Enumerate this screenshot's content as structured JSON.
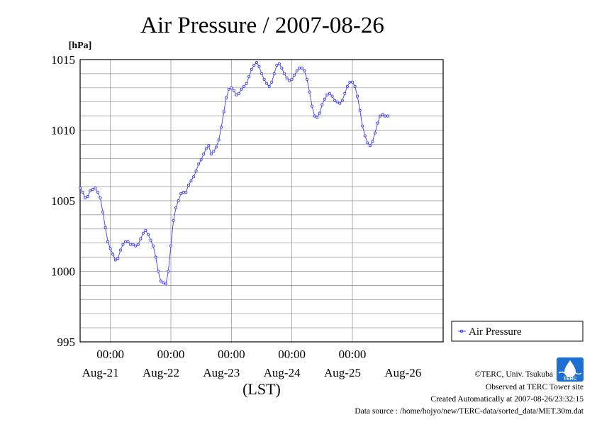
{
  "chart_data": {
    "type": "line",
    "title": "Air Pressure / 2007-08-26",
    "ylabel": "[hPa]",
    "xlabel": "(LST)",
    "ylim": [
      995,
      1015
    ],
    "yticks": [
      995,
      1000,
      1005,
      1010,
      1015
    ],
    "xlim": [
      0,
      144
    ],
    "x_unit": "hours since 2007-08-20 12:00 LST",
    "x_time_ticks": [
      {
        "x": 12,
        "label": "00:00"
      },
      {
        "x": 36,
        "label": "00:00"
      },
      {
        "x": 60,
        "label": "00:00"
      },
      {
        "x": 84,
        "label": "00:00"
      },
      {
        "x": 108,
        "label": "00:00"
      }
    ],
    "x_date_labels": [
      {
        "x": 12,
        "label": "Aug-21"
      },
      {
        "x": 36,
        "label": "Aug-22"
      },
      {
        "x": 60,
        "label": "Aug-23"
      },
      {
        "x": 84,
        "label": "Aug-24"
      },
      {
        "x": 108,
        "label": "Aug-25"
      },
      {
        "x": 132,
        "label": "Aug-26"
      }
    ],
    "grid": true,
    "legend_position": "right",
    "series": [
      {
        "name": "Air Pressure",
        "color": "#3b3bff",
        "points": [
          [
            0,
            1005.9
          ],
          [
            1,
            1005.6
          ],
          [
            2,
            1005.2
          ],
          [
            3,
            1005.3
          ],
          [
            4,
            1005.7
          ],
          [
            5,
            1005.8
          ],
          [
            6,
            1005.9
          ],
          [
            7,
            1005.6
          ],
          [
            8,
            1005.2
          ],
          [
            9,
            1004.2
          ],
          [
            10,
            1003.1
          ],
          [
            11,
            1002.1
          ],
          [
            12,
            1001.6
          ],
          [
            13,
            1001.2
          ],
          [
            14,
            1000.8
          ],
          [
            15,
            1000.9
          ],
          [
            16,
            1001.5
          ],
          [
            17,
            1001.9
          ],
          [
            18,
            1002.1
          ],
          [
            19,
            1002.1
          ],
          [
            20,
            1001.9
          ],
          [
            21,
            1001.9
          ],
          [
            22,
            1001.8
          ],
          [
            23,
            1001.9
          ],
          [
            24,
            1002.3
          ],
          [
            25,
            1002.7
          ],
          [
            26,
            1002.9
          ],
          [
            27,
            1002.6
          ],
          [
            28,
            1002.2
          ],
          [
            29,
            1001.8
          ],
          [
            30,
            1001.0
          ],
          [
            31,
            1000.0
          ],
          [
            32,
            999.3
          ],
          [
            33,
            999.2
          ],
          [
            34,
            999.1
          ],
          [
            35,
            1000.0
          ],
          [
            36,
            1001.8
          ],
          [
            37,
            1003.6
          ],
          [
            38,
            1004.5
          ],
          [
            39,
            1005.0
          ],
          [
            40,
            1005.5
          ],
          [
            41,
            1005.6
          ],
          [
            42,
            1005.6
          ],
          [
            43,
            1006.1
          ],
          [
            44,
            1006.4
          ],
          [
            45,
            1006.7
          ],
          [
            46,
            1007.1
          ],
          [
            47,
            1007.6
          ],
          [
            48,
            1007.9
          ],
          [
            49,
            1008.3
          ],
          [
            50,
            1008.7
          ],
          [
            51,
            1008.9
          ],
          [
            52,
            1008.3
          ],
          [
            53,
            1008.5
          ],
          [
            54,
            1008.8
          ],
          [
            55,
            1009.3
          ],
          [
            56,
            1010.2
          ],
          [
            57,
            1011.3
          ],
          [
            58,
            1012.3
          ],
          [
            59,
            1012.9
          ],
          [
            60,
            1013.0
          ],
          [
            61,
            1012.8
          ],
          [
            62,
            1012.5
          ],
          [
            63,
            1012.6
          ],
          [
            64,
            1012.9
          ],
          [
            65,
            1013.1
          ],
          [
            66,
            1013.3
          ],
          [
            67,
            1013.8
          ],
          [
            68,
            1014.3
          ],
          [
            69,
            1014.6
          ],
          [
            70,
            1014.8
          ],
          [
            71,
            1014.5
          ],
          [
            72,
            1014.0
          ],
          [
            73,
            1013.6
          ],
          [
            74,
            1013.3
          ],
          [
            75,
            1013.1
          ],
          [
            76,
            1013.4
          ],
          [
            77,
            1014.0
          ],
          [
            78,
            1014.6
          ],
          [
            79,
            1014.7
          ],
          [
            80,
            1014.4
          ],
          [
            81,
            1014.0
          ],
          [
            82,
            1013.7
          ],
          [
            83,
            1013.5
          ],
          [
            84,
            1013.6
          ],
          [
            85,
            1013.9
          ],
          [
            86,
            1014.2
          ],
          [
            87,
            1014.4
          ],
          [
            88,
            1014.4
          ],
          [
            89,
            1014.2
          ],
          [
            90,
            1013.6
          ],
          [
            91,
            1012.7
          ],
          [
            92,
            1011.7
          ],
          [
            93,
            1011.0
          ],
          [
            94,
            1010.9
          ],
          [
            95,
            1011.2
          ],
          [
            96,
            1011.8
          ],
          [
            97,
            1012.2
          ],
          [
            98,
            1012.5
          ],
          [
            99,
            1012.6
          ],
          [
            100,
            1012.4
          ],
          [
            101,
            1012.1
          ],
          [
            102,
            1012.0
          ],
          [
            103,
            1011.9
          ],
          [
            104,
            1012.1
          ],
          [
            105,
            1012.6
          ],
          [
            106,
            1013.1
          ],
          [
            107,
            1013.4
          ],
          [
            108,
            1013.4
          ],
          [
            109,
            1013.1
          ],
          [
            110,
            1012.4
          ],
          [
            111,
            1011.4
          ],
          [
            112,
            1010.3
          ],
          [
            113,
            1009.6
          ],
          [
            114,
            1009.1
          ],
          [
            115,
            1008.9
          ],
          [
            116,
            1009.2
          ],
          [
            117,
            1009.8
          ],
          [
            118,
            1010.5
          ],
          [
            119,
            1011.0
          ],
          [
            120,
            1011.1
          ],
          [
            121,
            1011.0
          ],
          [
            122,
            1011.0
          ]
        ]
      }
    ]
  },
  "legend": {
    "label": "Air Pressure"
  },
  "footer": {
    "credit": "©TERC, Univ. Tsukuba",
    "observed": "Observed at TERC Tower site",
    "created": "Created Automatically at 2007-08-26/23:32:15",
    "source": "Data source : /home/hojyo/new/TERC-data/sorted_data/MET.30m.dat"
  },
  "logo": {
    "text": "TERC",
    "color": "#1d6fd1"
  }
}
